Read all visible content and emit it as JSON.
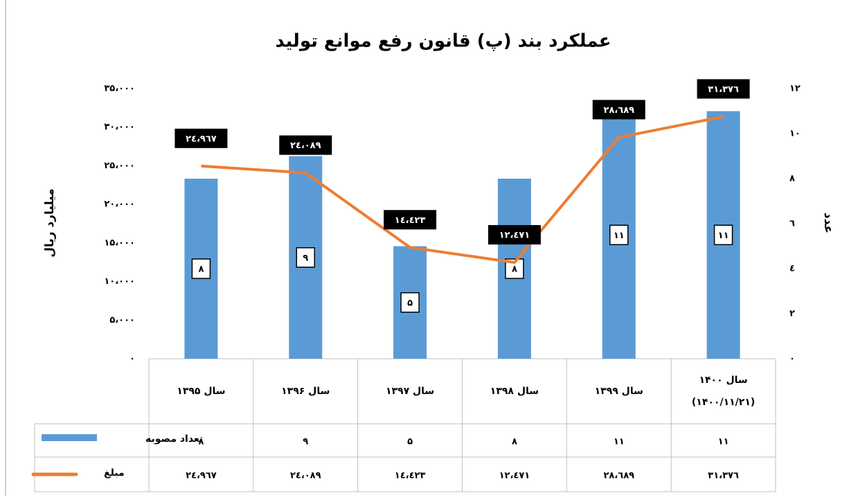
{
  "chart_data": {
    "type": "bar_line",
    "title": "عملکرد بند (پ) قانون رفع موانع تولید",
    "y_label": "میلیارد ریال",
    "y2_label": "عدد",
    "categories": [
      "سال ۱۳۹۵",
      "سال ۱۳۹۶",
      "سال ۱۳۹۷",
      "سال ۱۳۹۸",
      "سال ۱۳۹۹",
      "سال ۱۴۰۰\n(۱۴۰۰/۱۱/۲۱)"
    ],
    "series": [
      {
        "name": "تعداد مصوبه",
        "type": "bar",
        "axis": "y2",
        "color": "#5b9bd5",
        "values": [
          8,
          9,
          5,
          8,
          11,
          11
        ],
        "value_labels": [
          "۸",
          "۹",
          "۵",
          "۸",
          "۱۱",
          "۱۱"
        ]
      },
      {
        "name": "مبلغ",
        "type": "line",
        "axis": "y",
        "color": "#ed7d31",
        "values": [
          24967,
          24089,
          14423,
          12471,
          28689,
          31376
        ],
        "value_labels": [
          "۲٤،۹٦۷",
          "۲٤،۰۸۹",
          "۱٤،٤۲۳",
          "۱۲،٤۷۱",
          "۲۸،٦۸۹",
          "۳۱،۳۷٦"
        ]
      }
    ],
    "ylim": [
      0,
      35000
    ],
    "yticks": [
      {
        "value": 0,
        "label": "۰"
      },
      {
        "value": 5000,
        "label": "۵،۰۰۰"
      },
      {
        "value": 10000,
        "label": "۱۰،۰۰۰"
      },
      {
        "value": 15000,
        "label": "۱۵،۰۰۰"
      },
      {
        "value": 20000,
        "label": "۲۰،۰۰۰"
      },
      {
        "value": 25000,
        "label": "۲۵،۰۰۰"
      },
      {
        "value": 30000,
        "label": "۳۰،۰۰۰"
      },
      {
        "value": 35000,
        "label": "۳۵،۰۰۰"
      }
    ],
    "y2lim": [
      0,
      12
    ],
    "y2ticks": [
      {
        "value": 0,
        "label": "۰"
      },
      {
        "value": 2,
        "label": "۲"
      },
      {
        "value": 4,
        "label": "٤"
      },
      {
        "value": 6,
        "label": "٦"
      },
      {
        "value": 8,
        "label": "۸"
      },
      {
        "value": 10,
        "label": "۱۰"
      },
      {
        "value": 12,
        "label": "۱۲"
      }
    ],
    "data_table": true
  }
}
